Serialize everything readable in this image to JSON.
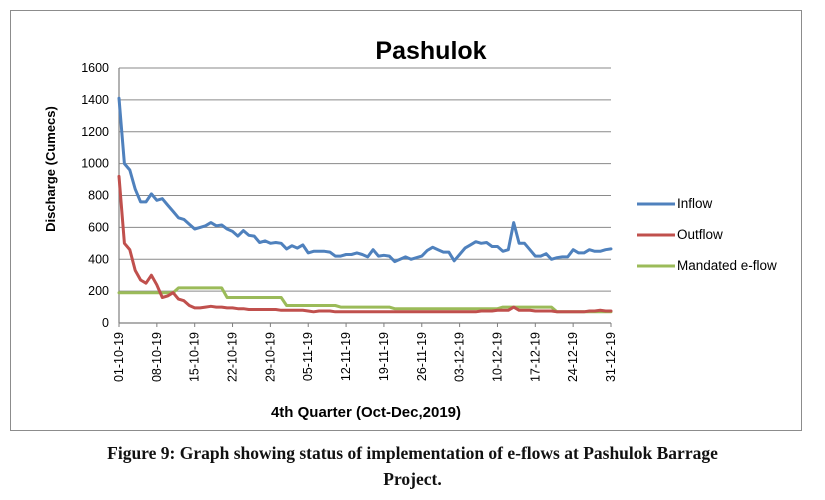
{
  "caption": {
    "line1": "Figure 9: Graph showing status of implementation of e-flows at Pashulok Barrage",
    "line2": "Project."
  },
  "chart_data": {
    "type": "line",
    "title": "Pashulok",
    "xlabel": "4th Quarter (Oct-Dec,2019)",
    "ylabel": "Discharge (Cumecs)",
    "ylim": [
      0,
      1600
    ],
    "yticks": [
      0,
      200,
      400,
      600,
      800,
      1000,
      1200,
      1400,
      1600
    ],
    "grid": true,
    "legend_position": "right",
    "x_tick_labels": [
      "01-10-19",
      "08-10-19",
      "15-10-19",
      "22-10-19",
      "29-10-19",
      "05-11-19",
      "12-11-19",
      "19-11-19",
      "26-11-19",
      "03-12-19",
      "10-12-19",
      "17-12-19",
      "24-12-19",
      "31-12-19"
    ],
    "x": [
      "01-10-19",
      "02-10-19",
      "03-10-19",
      "04-10-19",
      "05-10-19",
      "06-10-19",
      "07-10-19",
      "08-10-19",
      "09-10-19",
      "10-10-19",
      "11-10-19",
      "12-10-19",
      "13-10-19",
      "14-10-19",
      "15-10-19",
      "16-10-19",
      "17-10-19",
      "18-10-19",
      "19-10-19",
      "20-10-19",
      "21-10-19",
      "22-10-19",
      "23-10-19",
      "24-10-19",
      "25-10-19",
      "26-10-19",
      "27-10-19",
      "28-10-19",
      "29-10-19",
      "30-10-19",
      "31-10-19",
      "01-11-19",
      "02-11-19",
      "03-11-19",
      "04-11-19",
      "05-11-19",
      "06-11-19",
      "07-11-19",
      "08-11-19",
      "09-11-19",
      "10-11-19",
      "11-11-19",
      "12-11-19",
      "13-11-19",
      "14-11-19",
      "15-11-19",
      "16-11-19",
      "17-11-19",
      "18-11-19",
      "19-11-19",
      "20-11-19",
      "21-11-19",
      "22-11-19",
      "23-11-19",
      "24-11-19",
      "25-11-19",
      "26-11-19",
      "27-11-19",
      "28-11-19",
      "29-11-19",
      "30-11-19",
      "01-12-19",
      "02-12-19",
      "03-12-19",
      "04-12-19",
      "05-12-19",
      "06-12-19",
      "07-12-19",
      "08-12-19",
      "09-12-19",
      "10-12-19",
      "11-12-19",
      "12-12-19",
      "13-12-19",
      "14-12-19",
      "15-12-19",
      "16-12-19",
      "17-12-19",
      "18-12-19",
      "19-12-19",
      "20-12-19",
      "21-12-19",
      "22-12-19",
      "23-12-19",
      "24-12-19",
      "25-12-19",
      "26-12-19",
      "27-12-19",
      "28-12-19",
      "29-12-19",
      "30-12-19",
      "31-12-19"
    ],
    "series": [
      {
        "name": "Inflow",
        "color": "#4f81bd",
        "values": [
          1410,
          1000,
          960,
          840,
          760,
          760,
          810,
          770,
          780,
          740,
          700,
          660,
          650,
          620,
          590,
          600,
          610,
          630,
          610,
          615,
          590,
          575,
          545,
          580,
          550,
          545,
          505,
          515,
          500,
          505,
          500,
          465,
          485,
          470,
          490,
          440,
          450,
          450,
          450,
          445,
          420,
          420,
          430,
          430,
          440,
          430,
          415,
          460,
          420,
          425,
          420,
          385,
          400,
          415,
          400,
          410,
          420,
          455,
          475,
          460,
          445,
          445,
          390,
          430,
          470,
          490,
          510,
          500,
          505,
          480,
          480,
          450,
          460,
          630,
          500,
          500,
          460,
          420,
          420,
          435,
          400,
          410,
          415,
          415,
          460,
          440,
          440,
          460,
          450,
          450,
          460,
          465
        ]
      },
      {
        "name": "Outflow",
        "color": "#c0504d",
        "values": [
          920,
          500,
          460,
          330,
          270,
          250,
          300,
          240,
          160,
          170,
          190,
          150,
          140,
          110,
          95,
          95,
          100,
          105,
          100,
          100,
          95,
          95,
          90,
          90,
          85,
          85,
          85,
          85,
          85,
          85,
          80,
          80,
          80,
          80,
          80,
          75,
          70,
          75,
          75,
          75,
          70,
          70,
          70,
          70,
          70,
          70,
          70,
          70,
          70,
          70,
          70,
          70,
          70,
          70,
          70,
          70,
          70,
          70,
          70,
          70,
          70,
          70,
          70,
          70,
          70,
          70,
          70,
          75,
          75,
          75,
          80,
          80,
          80,
          100,
          80,
          80,
          80,
          75,
          75,
          75,
          75,
          70,
          70,
          70,
          70,
          70,
          70,
          75,
          75,
          80,
          75,
          75
        ]
      },
      {
        "name": "Mandated e-flow",
        "color": "#9bbb59",
        "values": [
          190,
          190,
          190,
          190,
          190,
          190,
          190,
          190,
          190,
          190,
          190,
          220,
          220,
          220,
          220,
          220,
          220,
          220,
          220,
          220,
          160,
          160,
          160,
          160,
          160,
          160,
          160,
          160,
          160,
          160,
          160,
          110,
          110,
          110,
          110,
          110,
          110,
          110,
          110,
          110,
          110,
          100,
          100,
          100,
          100,
          100,
          100,
          100,
          100,
          100,
          100,
          90,
          90,
          90,
          90,
          90,
          90,
          90,
          90,
          90,
          90,
          90,
          90,
          90,
          90,
          90,
          90,
          90,
          90,
          90,
          90,
          100,
          100,
          100,
          100,
          100,
          100,
          100,
          100,
          100,
          100,
          70,
          70,
          70,
          70,
          70,
          70,
          70,
          70,
          70,
          70,
          70
        ]
      }
    ]
  }
}
